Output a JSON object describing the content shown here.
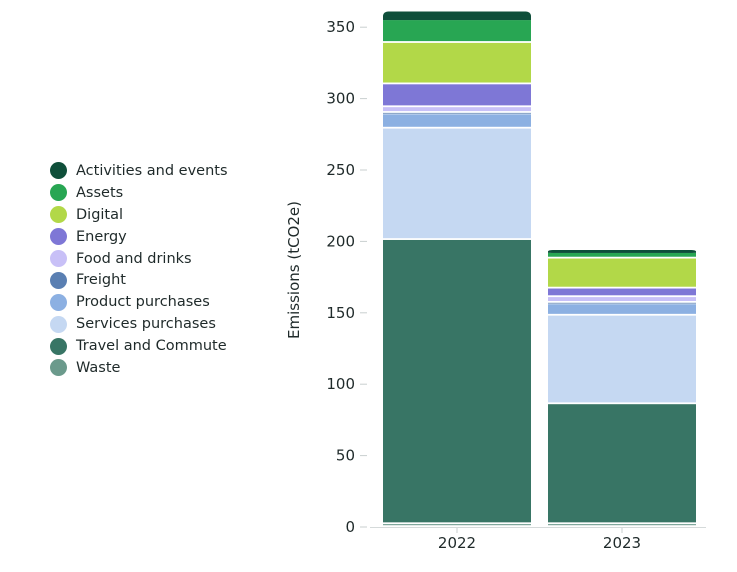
{
  "chart_data": {
    "type": "bar",
    "stacked": true,
    "title": "",
    "xlabel": "",
    "ylabel": "Emissions (tCO2e)",
    "ylim": [
      0,
      360
    ],
    "yticks": [
      0,
      50,
      100,
      150,
      200,
      250,
      300,
      350
    ],
    "categories": [
      "2022",
      "2023"
    ],
    "series": [
      {
        "name": "Waste",
        "color": "#6b9a8c",
        "values": [
          2,
          2
        ]
      },
      {
        "name": "Travel and Commute",
        "color": "#387565",
        "values": [
          199,
          84
        ]
      },
      {
        "name": "Services purchases",
        "color": "#c5d8f2",
        "values": [
          78,
          62
        ]
      },
      {
        "name": "Product purchases",
        "color": "#8cb0e2",
        "values": [
          10,
          8
        ]
      },
      {
        "name": "Freight",
        "color": "#5a7fb2",
        "values": [
          1,
          1
        ]
      },
      {
        "name": "Food and drinks",
        "color": "#c8c0f7",
        "values": [
          4,
          4
        ]
      },
      {
        "name": "Energy",
        "color": "#7e77d6",
        "values": [
          16,
          6
        ]
      },
      {
        "name": "Digital",
        "color": "#b2d848",
        "values": [
          29,
          21
        ]
      },
      {
        "name": "Assets",
        "color": "#28a653",
        "values": [
          16,
          4
        ]
      },
      {
        "name": "Activities and events",
        "color": "#0f4f3a",
        "values": [
          6,
          2
        ]
      }
    ],
    "legend_order": [
      "Activities and events",
      "Assets",
      "Digital",
      "Energy",
      "Food and drinks",
      "Freight",
      "Product purchases",
      "Services purchases",
      "Travel and Commute",
      "Waste"
    ],
    "legend_position": "left"
  }
}
